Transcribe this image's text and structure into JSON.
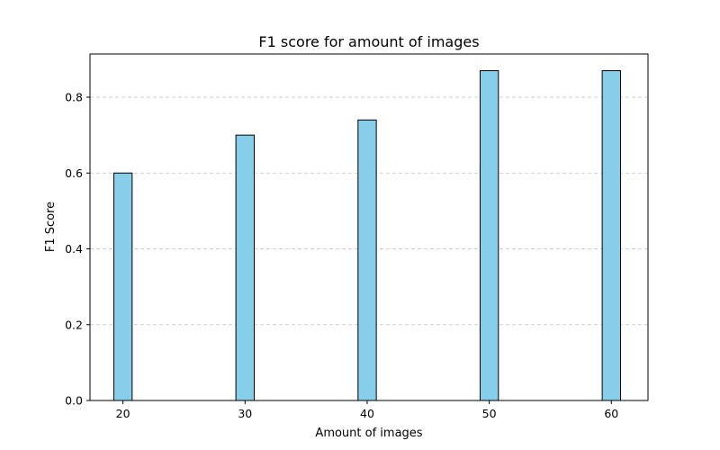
{
  "chart_data": {
    "type": "bar",
    "title": "F1 score for amount of images",
    "xlabel": "Amount of images",
    "ylabel": "F1 Score",
    "x": [
      20,
      30,
      40,
      50,
      60
    ],
    "values": [
      0.6,
      0.7,
      0.74,
      0.87,
      0.87
    ],
    "xlim": [
      17.3,
      63.0
    ],
    "ylim": [
      0,
      0.914
    ],
    "xticks": [
      "20",
      "30",
      "40",
      "50",
      "60"
    ],
    "yticks": [
      "0.0",
      "0.2",
      "0.4",
      "0.6",
      "0.8"
    ],
    "ytick_values": [
      0,
      0.2,
      0.4,
      0.6,
      0.8
    ],
    "bar_width": 1.5,
    "grid": "horizontal dashed",
    "legend": "none",
    "colors": {
      "bar_fill": "#87ceeb",
      "bar_edge": "#000000",
      "grid": "#c0c0c0"
    }
  }
}
